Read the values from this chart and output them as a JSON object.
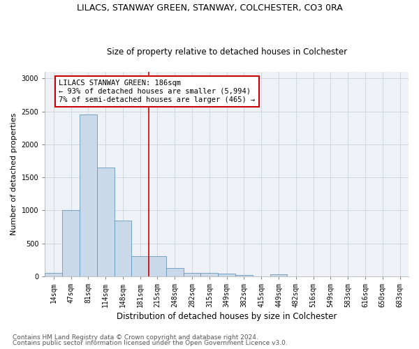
{
  "title": "LILACS, STANWAY GREEN, STANWAY, COLCHESTER, CO3 0RA",
  "subtitle": "Size of property relative to detached houses in Colchester",
  "xlabel": "Distribution of detached houses by size in Colchester",
  "ylabel": "Number of detached properties",
  "footer_line1": "Contains HM Land Registry data © Crown copyright and database right 2024.",
  "footer_line2": "Contains public sector information licensed under the Open Government Licence v3.0.",
  "bar_labels": [
    "14sqm",
    "47sqm",
    "81sqm",
    "114sqm",
    "148sqm",
    "181sqm",
    "215sqm",
    "248sqm",
    "282sqm",
    "315sqm",
    "349sqm",
    "382sqm",
    "415sqm",
    "449sqm",
    "482sqm",
    "516sqm",
    "549sqm",
    "583sqm",
    "616sqm",
    "650sqm",
    "683sqm"
  ],
  "bar_values": [
    50,
    1000,
    2450,
    1650,
    850,
    300,
    300,
    130,
    50,
    50,
    35,
    20,
    0,
    30,
    0,
    0,
    0,
    0,
    0,
    0,
    0
  ],
  "bar_color": "#c9d9e9",
  "bar_edge_color": "#6699bb",
  "bar_linewidth": 0.6,
  "vline_color": "#cc0000",
  "annotation_text": "LILACS STANWAY GREEN: 186sqm\n← 93% of detached houses are smaller (5,994)\n7% of semi-detached houses are larger (465) →",
  "annotation_box_color": "#ffffff",
  "annotation_box_edge": "#cc0000",
  "ylim": [
    0,
    3100
  ],
  "yticks": [
    0,
    500,
    1000,
    1500,
    2000,
    2500,
    3000
  ],
  "grid_color": "#d0d8e0",
  "background_color": "#eef2f7",
  "title_fontsize": 9,
  "subtitle_fontsize": 8.5,
  "ylabel_fontsize": 8,
  "xlabel_fontsize": 8.5,
  "tick_fontsize": 7,
  "annotation_fontsize": 7.5,
  "footer_fontsize": 6.5
}
